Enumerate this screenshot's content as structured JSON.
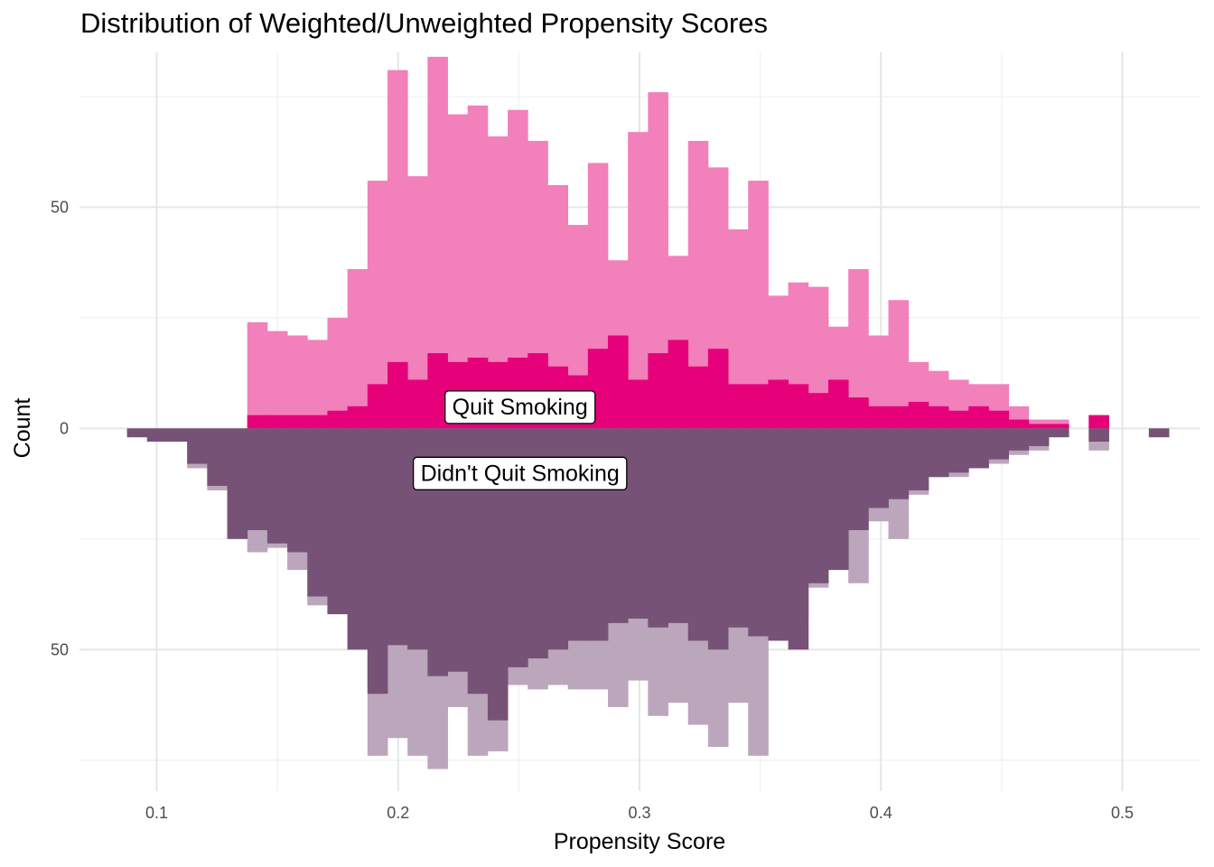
{
  "chart_data": {
    "type": "bar",
    "title": "Distribution of Weighted/Unweighted Propensity Scores",
    "xlabel": "Propensity Score",
    "ylabel": "Count",
    "xlim": [
      0.068,
      0.532
    ],
    "ylim": [
      -82,
      85
    ],
    "x_ticks": [
      0.1,
      0.2,
      0.3,
      0.4,
      0.5
    ],
    "x_tick_labels": [
      "0.1",
      "0.2",
      "0.3",
      "0.4",
      "0.5"
    ],
    "y_ticks": [
      50,
      0,
      -50
    ],
    "y_tick_labels": [
      "50",
      "0",
      "50"
    ],
    "grid": true,
    "bin_width": 0.0083,
    "bin_start": 0.0877,
    "colors": {
      "quit_weighted": "#f280ba",
      "quit_unweighted": "#e6007a",
      "noquit_weighted": "#bba6bb",
      "noquit_unweighted": "#775277"
    },
    "series": [
      {
        "group": "quit",
        "kind": "weighted",
        "values": [
          0,
          0,
          0,
          0,
          0,
          0,
          24,
          22,
          21,
          20,
          25,
          36,
          56,
          81,
          57,
          84,
          71,
          73,
          66,
          72,
          65,
          55,
          46,
          60,
          38,
          67,
          76,
          39,
          65,
          59,
          45,
          56,
          30,
          33,
          32,
          23,
          36,
          21,
          29,
          15,
          13,
          11,
          10,
          10,
          5,
          2,
          2,
          0,
          3,
          0,
          0,
          0,
          0,
          0,
          0,
          0,
          2
        ]
      },
      {
        "group": "quit",
        "kind": "unweighted",
        "values": [
          0,
          0,
          0,
          0,
          0,
          0,
          3,
          3,
          3,
          3,
          4,
          5,
          10,
          15,
          11,
          17,
          15,
          16,
          15,
          16,
          17,
          14,
          12,
          18,
          21,
          11,
          17,
          20,
          14,
          18,
          10,
          10,
          11,
          10,
          8,
          11,
          7,
          5,
          5,
          6,
          5,
          4,
          5,
          4,
          2,
          1,
          1,
          0,
          3,
          0,
          0,
          0,
          0,
          0,
          0,
          0,
          1
        ]
      },
      {
        "group": "noquit",
        "kind": "weighted",
        "values": [
          2,
          3,
          3,
          9,
          14,
          24,
          28,
          27,
          32,
          40,
          42,
          50,
          74,
          70,
          74,
          77,
          63,
          74,
          73,
          58,
          59,
          58,
          59,
          59,
          63,
          57,
          65,
          62,
          67,
          72,
          62,
          74,
          28,
          43,
          36,
          32,
          35,
          21,
          25,
          15,
          11,
          11,
          9,
          8,
          6,
          5,
          2,
          0,
          5,
          0,
          0,
          2,
          0,
          0,
          0,
          0,
          0
        ]
      },
      {
        "group": "noquit",
        "kind": "unweighted",
        "values": [
          2,
          3,
          3,
          8,
          13,
          25,
          23,
          26,
          28,
          38,
          42,
          50,
          60,
          49,
          50,
          56,
          55,
          60,
          66,
          54,
          52,
          50,
          48,
          48,
          44,
          43,
          45,
          44,
          48,
          50,
          45,
          47,
          48,
          50,
          35,
          32,
          23,
          18,
          16,
          14,
          11,
          10,
          9,
          7,
          5,
          4,
          2,
          0,
          3,
          0,
          0,
          2,
          0,
          0,
          0,
          0,
          0
        ]
      }
    ],
    "annotations": [
      {
        "text": "Quit Smoking",
        "x": 0.2505,
        "y": 5
      },
      {
        "text": "Didn't Quit Smoking",
        "x": 0.2505,
        "y": -10
      }
    ]
  }
}
